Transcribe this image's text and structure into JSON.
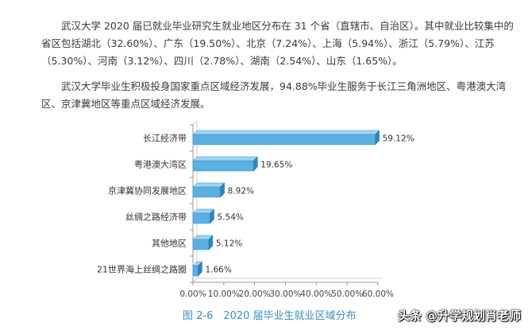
{
  "paragraphs": {
    "p1": "武汉大学 2020 届已就业毕业研究生就业地区分布在 31 个省（直辖市、自治区）。其中就业比较集中的省区包括湖北（32.60%）、广东（19.50%）、北京（7.24%）、上海（5.94%）、浙江（5.79%）、江苏（5.30%）、河南（3.12%）、四川（2.78%）、湖南（2.54%）、山东（1.65%）。",
    "p2": "武汉大学毕业生积极投身国家重点区域经济发展，94.88%毕业生服务于长江三角洲地区、粤港澳大湾区、京津冀地区等重点区域经济发展。"
  },
  "caption": "图 2-6　2020 届毕业生就业区域分布",
  "watermark": "头条 @升学规划肖老师",
  "colors": {
    "bar_front": "#5ab0e0",
    "bar_top": "#9fd3f0",
    "bar_side": "#2f86be",
    "axis": "#9a9a9a",
    "caption": "#3a8fc5"
  },
  "chart_data": {
    "type": "bar",
    "orientation": "horizontal",
    "style": "3d",
    "categories": [
      "长江经济带",
      "粤港澳大湾区",
      "京津冀协同发展地区",
      "丝绸之路经济带",
      "其他地区",
      "21世界海上丝绸之路圈"
    ],
    "values": [
      59.12,
      19.65,
      8.92,
      5.54,
      5.12,
      1.66
    ],
    "value_labels": [
      "59.12%",
      "19.65%",
      "8.92%",
      "5.54%",
      "5.12%",
      "1.66%"
    ],
    "xlim": [
      0,
      60
    ],
    "xticks": [
      "0.00%",
      "10.00%",
      "20.00%",
      "30.00%",
      "40.00%",
      "50.00%",
      "60.00%"
    ],
    "title": "",
    "xlabel": "",
    "ylabel": "",
    "grid": false,
    "legend": "none"
  }
}
